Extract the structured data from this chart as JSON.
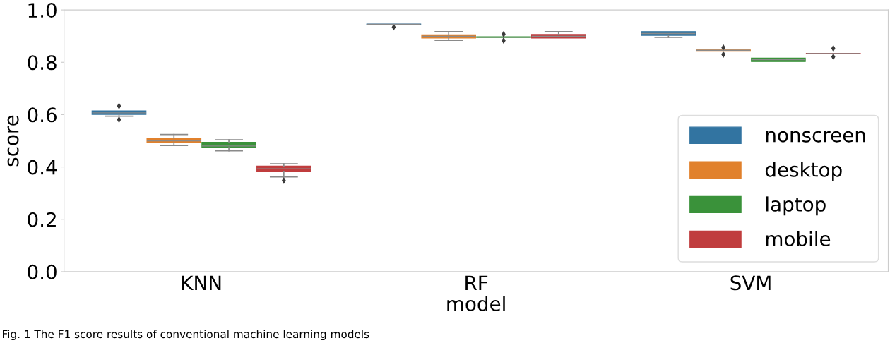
{
  "chart_data": {
    "type": "box",
    "xlabel": "model",
    "ylabel": "score",
    "categories": [
      "KNN",
      "RF",
      "SVM"
    ],
    "ylim": [
      0,
      1.0
    ],
    "yticks": [
      {
        "value": 0,
        "label": "0.0"
      },
      0.2,
      0.4,
      0.6,
      0.8,
      {
        "value": 1,
        "label": "1.0"
      }
    ],
    "legend": "lower right",
    "marker": "diamond",
    "series": [
      {
        "name": "nonscreen",
        "color": "#3274a1",
        "boxes": [
          {
            "low": 0.594,
            "q1": 0.601,
            "median": 0.607,
            "q3": 0.614,
            "high": 0.614,
            "outliers": [
              0.633,
              0.581
            ]
          },
          {
            "low": 0.943,
            "q1": 0.943,
            "median": 0.945,
            "q3": 0.946,
            "high": 0.946,
            "outliers": [
              0.934
            ]
          },
          {
            "low": 0.895,
            "q1": 0.903,
            "median": 0.91,
            "q3": 0.917,
            "high": 0.917
          }
        ]
      },
      {
        "name": "desktop",
        "color": "#e1812c",
        "boxes": [
          {
            "low": 0.482,
            "q1": 0.493,
            "median": 0.5,
            "q3": 0.51,
            "high": 0.524
          },
          {
            "low": 0.884,
            "q1": 0.893,
            "median": 0.899,
            "q3": 0.905,
            "high": 0.917
          },
          {
            "low": 0.845,
            "q1": 0.845,
            "median": 0.846,
            "q3": 0.847,
            "high": 0.847,
            "outliers": [
              0.856,
              0.83
            ]
          }
        ]
      },
      {
        "name": "laptop",
        "color": "#3a923a",
        "boxes": [
          {
            "low": 0.462,
            "q1": 0.474,
            "median": 0.48,
            "q3": 0.494,
            "high": 0.504
          },
          {
            "low": 0.895,
            "q1": 0.895,
            "median": 0.896,
            "q3": 0.897,
            "high": 0.897,
            "outliers": [
              0.907,
              0.883
            ]
          },
          {
            "low": 0.803,
            "q1": 0.803,
            "median": 0.81,
            "q3": 0.816,
            "high": 0.816
          }
        ]
      },
      {
        "name": "mobile",
        "color": "#c03d3e",
        "boxes": [
          {
            "low": 0.362,
            "q1": 0.383,
            "median": 0.393,
            "q3": 0.403,
            "high": 0.412,
            "outliers": [
              0.348
            ]
          },
          {
            "low": 0.893,
            "q1": 0.893,
            "median": 0.899,
            "q3": 0.906,
            "high": 0.917
          },
          {
            "low": 0.832,
            "q1": 0.832,
            "median": 0.833,
            "q3": 0.834,
            "high": 0.834,
            "outliers": [
              0.853,
              0.821
            ]
          }
        ]
      }
    ],
    "annotations": [
      "Fig. 1 The F1 score results of conventional machine learning models"
    ]
  }
}
